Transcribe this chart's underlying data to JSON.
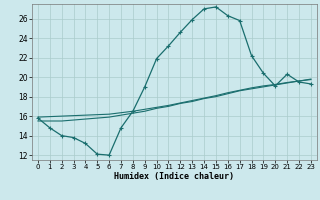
{
  "xlabel": "Humidex (Indice chaleur)",
  "bg_color": "#cce8ec",
  "grid_color": "#aacccc",
  "line_color": "#1a6e6e",
  "xlim": [
    -0.5,
    23.5
  ],
  "ylim": [
    11.5,
    27.5
  ],
  "xticks": [
    0,
    1,
    2,
    3,
    4,
    5,
    6,
    7,
    8,
    9,
    10,
    11,
    12,
    13,
    14,
    15,
    16,
    17,
    18,
    19,
    20,
    21,
    22,
    23
  ],
  "yticks": [
    12,
    14,
    16,
    18,
    20,
    22,
    24,
    26
  ],
  "series1_x": [
    0,
    1,
    2,
    3,
    4,
    5,
    6,
    7,
    8,
    9,
    10,
    11,
    12,
    13,
    14,
    15,
    16,
    17,
    18,
    19,
    20,
    21,
    22,
    23
  ],
  "series1_y": [
    15.8,
    14.8,
    14.0,
    13.8,
    13.2,
    12.1,
    12.0,
    14.8,
    16.5,
    19.0,
    21.9,
    23.2,
    24.6,
    25.9,
    27.0,
    27.2,
    26.3,
    25.8,
    22.2,
    20.4,
    19.1,
    20.3,
    19.5,
    19.3
  ],
  "series2_x": [
    0,
    1,
    2,
    3,
    4,
    5,
    6,
    7,
    8,
    9,
    10,
    11,
    12,
    13,
    14,
    15,
    16,
    17,
    18,
    19,
    20,
    21,
    22,
    23
  ],
  "series2_y": [
    15.5,
    15.5,
    15.5,
    15.6,
    15.7,
    15.8,
    15.9,
    16.1,
    16.3,
    16.5,
    16.8,
    17.0,
    17.3,
    17.5,
    17.8,
    18.0,
    18.3,
    18.6,
    18.8,
    19.0,
    19.2,
    19.4,
    19.6,
    19.8
  ],
  "series3_x": [
    0,
    1,
    2,
    3,
    4,
    5,
    6,
    7,
    8,
    9,
    10,
    11,
    12,
    13,
    14,
    15,
    16,
    17,
    18,
    19,
    20,
    21,
    22,
    23
  ],
  "series3_y": [
    15.9,
    15.95,
    16.0,
    16.05,
    16.1,
    16.15,
    16.2,
    16.35,
    16.5,
    16.7,
    16.9,
    17.1,
    17.35,
    17.6,
    17.85,
    18.1,
    18.4,
    18.65,
    18.9,
    19.1,
    19.25,
    19.45,
    19.6,
    19.75
  ]
}
